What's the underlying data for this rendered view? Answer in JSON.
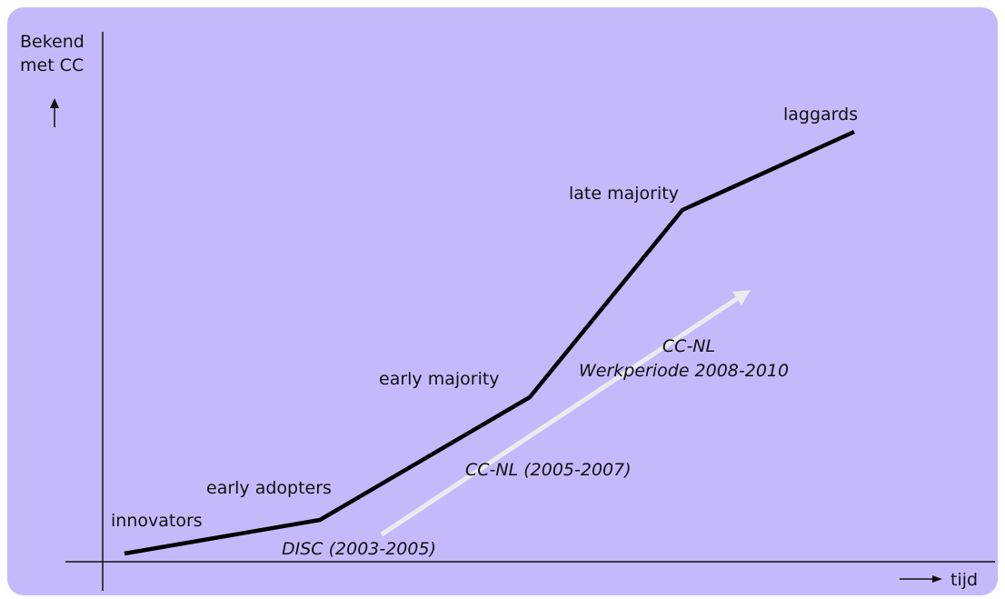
{
  "axes": {
    "y_label": [
      "Bekend",
      "met CC"
    ],
    "x_label": "tijd"
  },
  "stages": [
    "innovators",
    "early adopters",
    "early majority",
    "late majority",
    "laggards"
  ],
  "periods": [
    "DISC (2003-2005)",
    "CC-NL (2005-2007)",
    "CC-NL",
    "Werkperiode 2008-2010"
  ]
}
